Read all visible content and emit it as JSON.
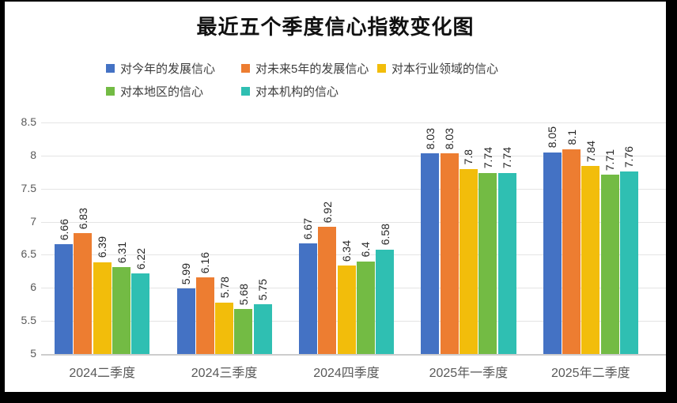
{
  "chart_data": {
    "type": "bar",
    "title": "最近五个季度信心指数变化图",
    "categories": [
      "2024二季度",
      "2024三季度",
      "2024四季度",
      "2025年一季度",
      "2025年二季度"
    ],
    "series": [
      {
        "name": "对今年的发展信心",
        "color": "#4472C4",
        "values": [
          6.66,
          5.99,
          6.67,
          8.03,
          8.05
        ]
      },
      {
        "name": "对未来5年的发展信心",
        "color": "#ED7D31",
        "values": [
          6.83,
          6.16,
          6.92,
          8.03,
          8.1
        ]
      },
      {
        "name": "对本行业领域的信心",
        "color": "#F2BD0B",
        "values": [
          6.39,
          5.78,
          6.34,
          7.8,
          7.84
        ]
      },
      {
        "name": "对本地区的信心",
        "color": "#73BB44",
        "values": [
          6.31,
          5.68,
          6.4,
          7.74,
          7.71
        ]
      },
      {
        "name": "对本机构的信心",
        "color": "#2FBFB2",
        "values": [
          6.22,
          5.75,
          6.58,
          7.74,
          7.76
        ]
      }
    ],
    "y_axis": {
      "min": 5,
      "max": 8.5,
      "step": 0.5,
      "tick_labels": [
        "5",
        "5.5",
        "6",
        "6.5",
        "7",
        "7.5",
        "8",
        "8.5"
      ]
    },
    "data_labels": true,
    "data_label_rotation": -90,
    "grid": true,
    "legend_position": "top",
    "background": "#ffffff",
    "frame_color": "#000000"
  }
}
